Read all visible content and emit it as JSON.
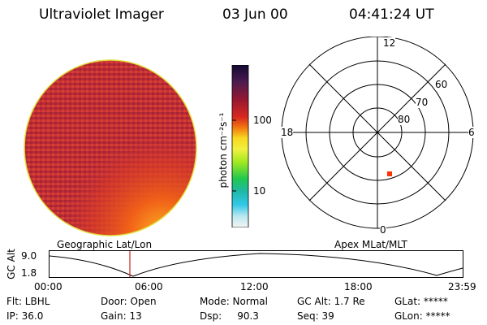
{
  "header": {
    "title": "Ultraviolet Imager",
    "date": "03 Jun 00",
    "time": "04:41:24 UT"
  },
  "colorbar": {
    "label": "photon cm⁻²s⁻¹",
    "tick_high": "100",
    "tick_low": "10"
  },
  "polar": {
    "mlt_top": "12",
    "mlt_left": "18",
    "mlt_right": "6",
    "mlt_bottom": "0",
    "lat_60": "60",
    "lat_70": "70",
    "lat_80": "80"
  },
  "orbit": {
    "left_label": "Geographic Lat/Lon",
    "right_label": "Apex MLat/MLT",
    "axis_label": "GC Alt",
    "y_top": "9.0",
    "y_bottom": "1.8",
    "x_ticks": [
      "00:00",
      "06:00",
      "12:00",
      "18:00",
      "23:59"
    ]
  },
  "info": {
    "flt": "Flt: LBHL",
    "ip": "IP: 36.0",
    "door": "Door: Open",
    "gain": "Gain: 13",
    "mode": "Mode: Normal",
    "dsp": "Dsp:     90.3",
    "gcalt": "GC Alt: 1.7 Re",
    "seq": "Seq: 39",
    "glat": "GLat: *****",
    "glon": "GLon: *****"
  },
  "colors": {
    "disk_base": "#c0303a",
    "disk_rim": "#e0e040",
    "orbit_marker": "#cc2222",
    "aurora_point": "#ff3300"
  }
}
